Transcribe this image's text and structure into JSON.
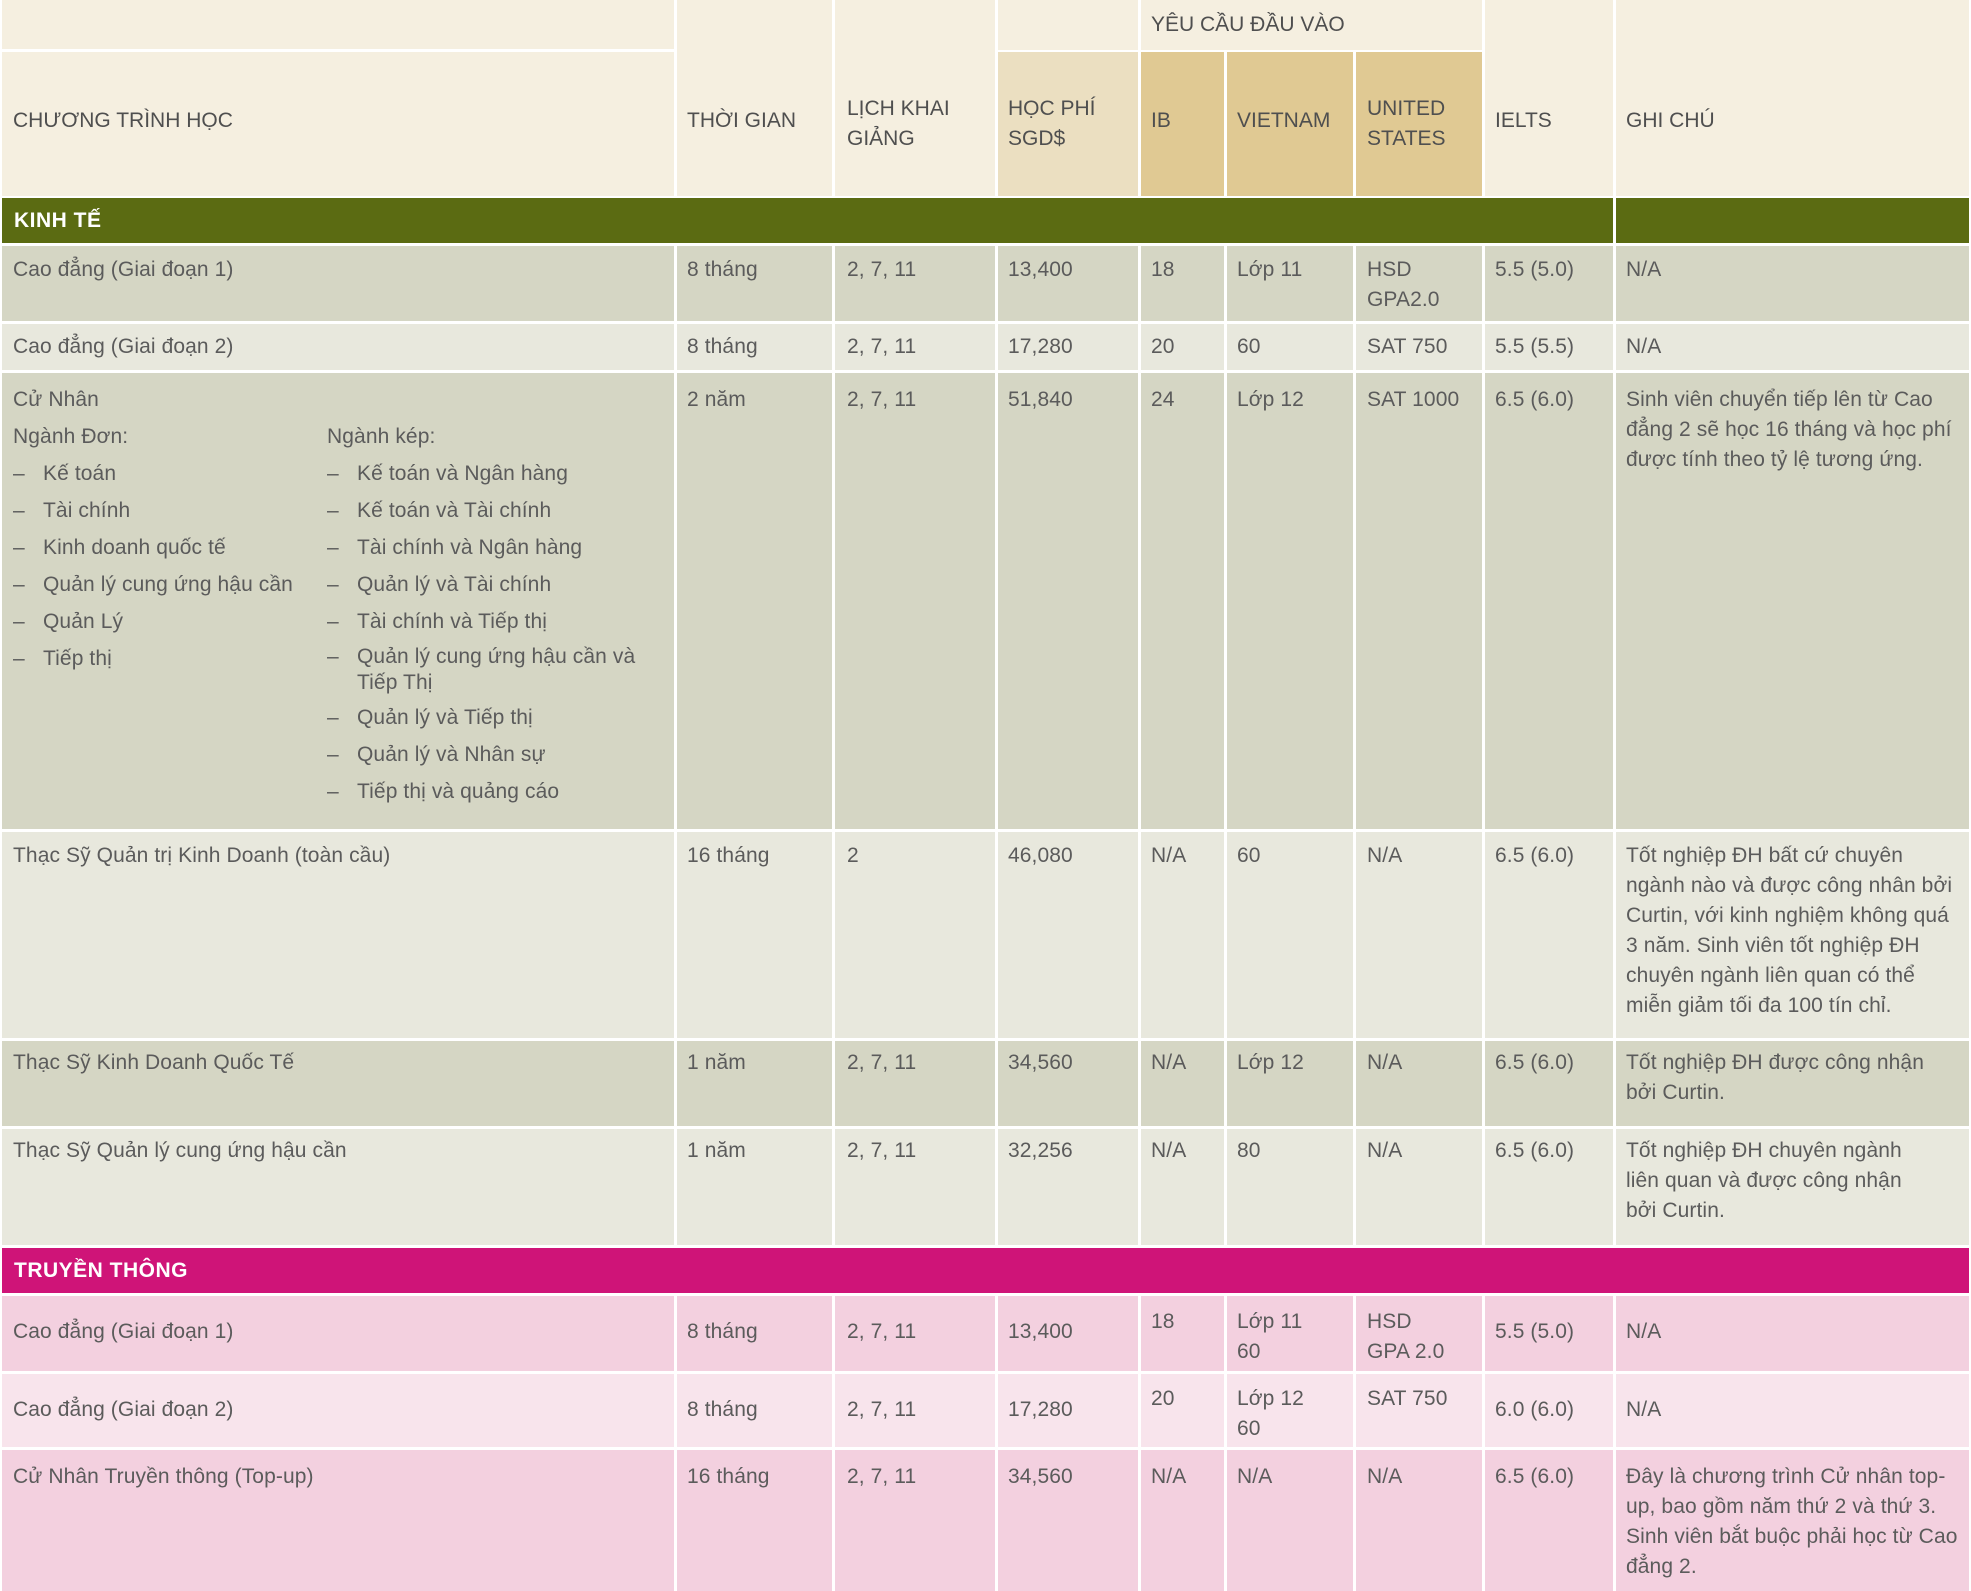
{
  "colors": {
    "header_bg": "#f5efe0",
    "fee_header_bg": "#ebdfc1",
    "req_header_bg": "#e0c993",
    "econ_section": "#5b6b12",
    "econ_row_dark": "#d5d6c4",
    "econ_row_light": "#e8e8dd",
    "media_section": "#cf1478",
    "media_row_dark": "#f3d0df",
    "media_row_light": "#f8e4ec"
  },
  "header": {
    "group_label": "YÊU CẦU ĐẦU VÀO",
    "columns": {
      "program": "CHƯƠNG TRÌNH HỌC",
      "duration": "THỜI GIAN",
      "intake": "LỊCH KHAI GIẢNG",
      "fee": "HỌC PHÍ SGD$",
      "ib": "IB",
      "vietnam": "VIETNAM",
      "us": "UNITED STATES",
      "ielts": "IELTS",
      "note": "GHI CHÚ"
    }
  },
  "sections": [
    {
      "title": "KINH TẾ",
      "rows": [
        {
          "program": "Cao đẳng (Giai đoạn 1)",
          "duration": "8 tháng",
          "intake": "2, 7, 11",
          "fee": "13,400",
          "ib": "18",
          "vietnam": "Lớp 11",
          "us": "HSD GPA2.0",
          "ielts": "5.5 (5.0)",
          "note": "N/A"
        },
        {
          "program": "Cao đẳng (Giai đoạn 2)",
          "duration": "8 tháng",
          "intake": "2, 7, 11",
          "fee": "17,280",
          "ib": "20",
          "vietnam": "60",
          "us": "SAT 750",
          "ielts": "5.5 (5.5)",
          "note": "N/A"
        },
        {
          "program": "Cử Nhân",
          "duration": "2 năm",
          "intake": "2, 7, 11",
          "fee": "51,840",
          "ib": "24",
          "vietnam": "Lớp 12",
          "us": "SAT 1000",
          "ielts": "6.5 (6.0)",
          "note": "Sinh viên chuyển tiếp lên từ Cao đẳng 2 sẽ học 16 tháng và học phí được tính theo tỷ lệ tương ứng.",
          "single_heading": "Ngành Đơn:",
          "single_dash": "–",
          "single": [
            "Kế toán",
            "Tài chính",
            "Kinh doanh quốc tế",
            "Quản lý cung ứng hậu cần",
            "Quản Lý",
            "Tiếp thị"
          ],
          "double_heading": "Ngành kép:",
          "double": [
            "Kế toán và Ngân hàng",
            "Kế toán và Tài chính",
            "Tài chính và Ngân hàng",
            "Quản lý và Tài chính",
            "Tài chính và Tiếp thị",
            "Quản lý cung ứng hậu cần và Tiếp Thị",
            "Quản lý và Tiếp thị",
            "Quản lý và Nhân sự",
            "Tiếp thị và quảng cáo"
          ]
        },
        {
          "program": "Thạc Sỹ Quản trị Kinh Doanh (toàn cầu)",
          "duration": "16 tháng",
          "intake": "2",
          "fee": "46,080",
          "ib": "N/A",
          "vietnam": "60",
          "us": "N/A",
          "ielts": "6.5 (6.0)",
          "note": "Tốt nghiệp ĐH bất cứ chuyên ngành nào và được công nhân bởi Curtin, với kinh nghiệm không quá 3 năm. Sinh viên tốt nghiệp ĐH chuyên ngành liên quan có thể miễn giảm tối đa 100 tín chỉ."
        },
        {
          "program": "Thạc Sỹ Kinh Doanh Quốc Tế",
          "duration": "1 năm",
          "intake": "2, 7, 11",
          "fee": "34,560",
          "ib": "N/A",
          "vietnam": "Lớp 12",
          "us": "N/A",
          "ielts": "6.5 (6.0)",
          "note": "Tốt nghiệp ĐH được công nhận bởi Curtin."
        },
        {
          "program": "Thạc Sỹ Quản lý cung ứng hậu cần",
          "duration": "1 năm",
          "intake": "2, 7, 11",
          "fee": "32,256",
          "ib": "N/A",
          "vietnam": "80",
          "us": "N/A",
          "ielts": "6.5 (6.0)",
          "note": "Tốt nghiệp ĐH chuyên ngành liên quan và được công nhận bởi Curtin."
        }
      ]
    },
    {
      "title": "TRUYỀN THÔNG",
      "rows": [
        {
          "program": "Cao đẳng (Giai đoạn 1)",
          "duration": "8 tháng",
          "intake": "2, 7, 11",
          "fee": "13,400",
          "ib": "18",
          "vietnam": "Lớp 11 60",
          "us": "HSD GPA 2.0",
          "ielts": "5.5 (5.0)",
          "note": "N/A"
        },
        {
          "program": "Cao đẳng (Giai đoạn 2)",
          "duration": "8 tháng",
          "intake": "2, 7, 11",
          "fee": "17,280",
          "ib": "20",
          "vietnam": "Lớp 12 60",
          "us": "SAT 750",
          "ielts": "6.0 (6.0)",
          "note": "N/A"
        },
        {
          "program": "Cử Nhân Truyền thông (Top-up)",
          "duration": "16 tháng",
          "intake": "2, 7, 11",
          "fee": "34,560",
          "ib": "N/A",
          "vietnam": "N/A",
          "us": "N/A",
          "ielts": "6.5 (6.0)",
          "note": "Đây là chương trình Cử nhân top-up, bao gồm năm thứ 2 và thứ 3. Sinh viên bắt buộc phải học từ Cao đẳng 2."
        }
      ]
    }
  ]
}
